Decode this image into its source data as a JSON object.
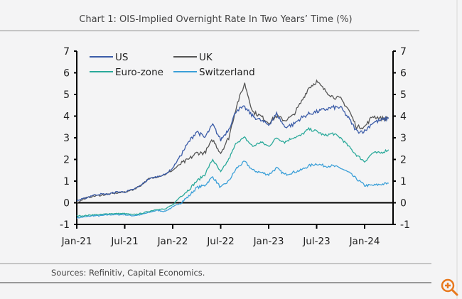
{
  "chart_data": {
    "type": "line",
    "title": "Chart 1: OIS-Implied Overnight Rate In Two Years’ Time (%)",
    "source": "Sources: Refinitiv, Capital Economics.",
    "x": [
      "2021-01",
      "2021-02",
      "2021-03",
      "2021-04",
      "2021-05",
      "2021-06",
      "2021-07",
      "2021-08",
      "2021-09",
      "2021-10",
      "2021-11",
      "2021-12",
      "2022-01",
      "2022-02",
      "2022-03",
      "2022-04",
      "2022-05",
      "2022-06",
      "2022-07",
      "2022-08",
      "2022-09",
      "2022-10",
      "2022-11",
      "2022-12",
      "2023-01",
      "2023-02",
      "2023-03",
      "2023-04",
      "2023-05",
      "2023-06",
      "2023-07",
      "2023-08",
      "2023-09",
      "2023-10",
      "2023-11",
      "2023-12",
      "2024-01",
      "2024-02",
      "2024-03",
      "2024-04"
    ],
    "x_ticks": [
      "Jan-21",
      "Jul-21",
      "Jan-22",
      "Jul-22",
      "Jan-23",
      "Jul-23",
      "Jan-24"
    ],
    "y_ticks": [
      "-1",
      "0",
      "1",
      "2",
      "3",
      "4",
      "5",
      "6",
      "7"
    ],
    "ylim": [
      -1,
      7
    ],
    "grid": false,
    "legend_position": "top-left",
    "series": [
      {
        "name": "US",
        "color": "#3b5ca8",
        "values": [
          0.1,
          0.2,
          0.35,
          0.4,
          0.4,
          0.5,
          0.5,
          0.6,
          0.8,
          1.1,
          1.2,
          1.3,
          1.6,
          2.2,
          2.8,
          3.3,
          3.0,
          3.6,
          2.9,
          3.4,
          4.3,
          4.4,
          4.0,
          3.8,
          3.6,
          4.1,
          3.5,
          3.6,
          3.9,
          4.1,
          4.2,
          4.3,
          4.4,
          4.4,
          3.9,
          3.3,
          3.3,
          3.7,
          3.8,
          3.9
        ]
      },
      {
        "name": "UK",
        "color": "#555555",
        "values": [
          0.0,
          0.2,
          0.3,
          0.35,
          0.4,
          0.45,
          0.5,
          0.6,
          0.8,
          1.1,
          1.2,
          1.3,
          1.5,
          1.8,
          2.0,
          2.3,
          2.3,
          2.9,
          2.3,
          3.0,
          4.5,
          5.5,
          4.2,
          4.0,
          3.7,
          4.0,
          3.8,
          4.0,
          4.6,
          5.3,
          5.6,
          5.2,
          4.9,
          4.8,
          4.3,
          3.5,
          3.5,
          4.0,
          3.9,
          3.9
        ]
      },
      {
        "name": "Euro-zone",
        "color": "#2aa99a",
        "values": [
          -0.6,
          -0.6,
          -0.55,
          -0.55,
          -0.5,
          -0.5,
          -0.5,
          -0.55,
          -0.5,
          -0.4,
          -0.3,
          -0.3,
          -0.1,
          0.3,
          0.6,
          1.0,
          1.3,
          2.0,
          1.4,
          2.0,
          2.8,
          3.0,
          2.6,
          2.8,
          2.6,
          3.0,
          2.8,
          3.0,
          3.1,
          3.4,
          3.3,
          3.1,
          3.2,
          3.0,
          2.6,
          2.2,
          1.9,
          2.3,
          2.3,
          2.45
        ]
      },
      {
        "name": "Switzerland",
        "color": "#3a9fd8",
        "values": [
          -0.7,
          -0.65,
          -0.6,
          -0.6,
          -0.55,
          -0.55,
          -0.55,
          -0.6,
          -0.55,
          -0.45,
          -0.35,
          -0.4,
          -0.2,
          0.0,
          0.3,
          0.7,
          0.8,
          1.2,
          0.7,
          1.0,
          1.6,
          1.9,
          1.5,
          1.4,
          1.3,
          1.6,
          1.3,
          1.4,
          1.5,
          1.7,
          1.8,
          1.7,
          1.7,
          1.6,
          1.4,
          1.1,
          0.8,
          0.8,
          0.85,
          0.9
        ]
      }
    ]
  },
  "icons": {
    "zoom": "zoom-in-icon"
  }
}
